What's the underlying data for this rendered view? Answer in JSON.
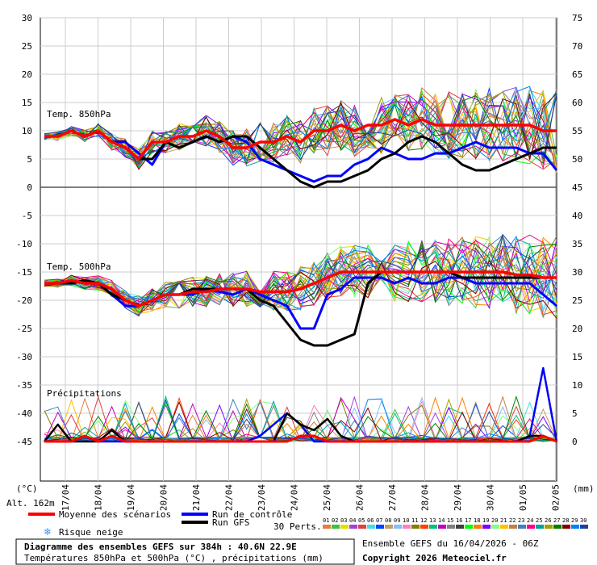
{
  "chart_data": {
    "type": "line",
    "x_dates": [
      "17/04",
      "18/04",
      "19/04",
      "20/04",
      "21/04",
      "22/04",
      "23/04",
      "24/04",
      "25/04",
      "26/04",
      "27/04",
      "28/04",
      "29/04",
      "30/04",
      "01/05",
      "02/05"
    ],
    "y_axis_left": {
      "unit": "(°C)",
      "ticks": [
        30,
        25,
        20,
        15,
        10,
        5,
        0,
        -5,
        -10,
        -15,
        -20,
        -25,
        -30,
        -35,
        -40,
        -45
      ]
    },
    "y_axis_right": {
      "unit": "(mm)",
      "ticks": [
        75,
        70,
        65,
        60,
        55,
        50,
        45,
        40,
        35,
        30,
        25,
        20,
        15,
        10,
        5,
        0
      ]
    },
    "panels": {
      "t850": {
        "label": "Temp. 850hPa"
      },
      "t500": {
        "label": "Temp. 500hPa"
      },
      "precip": {
        "label": "Précipitations"
      }
    },
    "alt_label": "Alt. 162m",
    "series": [
      {
        "name": "Moyenne des scénarios",
        "color": "#ff0000",
        "t850": [
          9,
          9,
          10,
          9,
          10,
          8,
          7,
          5,
          8,
          8,
          9,
          9,
          10,
          9,
          7,
          7,
          8,
          8,
          9,
          8,
          10,
          10,
          11,
          10,
          11,
          11,
          12,
          11,
          12,
          11,
          11,
          11,
          11,
          11,
          11,
          11,
          11,
          10,
          10
        ],
        "t500": [
          -17,
          -17,
          -16.5,
          -17,
          -17,
          -18,
          -20,
          -21,
          -20,
          -19,
          -19,
          -18.5,
          -18.5,
          -18,
          -18,
          -18,
          -18.5,
          -18.5,
          -18.5,
          -18,
          -17,
          -16,
          -15,
          -15,
          -15,
          -15,
          -15,
          -15,
          -15,
          -15,
          -15,
          -15,
          -15,
          -15,
          -15,
          -15.5,
          -15.5,
          -16,
          -16
        ],
        "precip": [
          0,
          0,
          0,
          1,
          0,
          1,
          0,
          0,
          0,
          0,
          0,
          0,
          0,
          0,
          0,
          0,
          0,
          0,
          0,
          1,
          1,
          0,
          0,
          0,
          0,
          0,
          0,
          0,
          0,
          0,
          0,
          0,
          0,
          0,
          0,
          0,
          0,
          1,
          0
        ]
      },
      {
        "name": "Run de contrôle",
        "color": "#0000ff",
        "t850": [
          9,
          9,
          10,
          9,
          10,
          8,
          8,
          6,
          4,
          8,
          7,
          8,
          9,
          8,
          9,
          8,
          5,
          4,
          3,
          2,
          1,
          2,
          2,
          4,
          5,
          7,
          6,
          5,
          5,
          6,
          6,
          7,
          8,
          7,
          7,
          7,
          6,
          6,
          3
        ],
        "t500": [
          -17,
          -17,
          -17,
          -16.5,
          -17,
          -19,
          -21,
          -21,
          -20,
          -19,
          -19,
          -19,
          -18,
          -18.5,
          -19,
          -18,
          -19,
          -20,
          -21,
          -25,
          -25,
          -19,
          -18,
          -16,
          -16,
          -16,
          -17,
          -16,
          -17,
          -17,
          -16,
          -16,
          -17,
          -17,
          -17,
          -17,
          -17,
          -19,
          -21
        ],
        "precip": [
          0,
          0,
          0,
          1,
          0,
          0,
          0,
          0,
          0,
          0,
          0,
          0,
          0,
          0,
          0,
          0,
          1,
          3,
          5,
          3,
          0,
          0,
          0,
          0,
          0,
          0,
          0,
          0,
          0,
          0,
          0,
          0,
          0,
          0,
          0,
          0,
          1,
          13,
          0
        ]
      },
      {
        "name": "Run GFS",
        "color": "#000000",
        "t850": [
          9,
          9,
          10,
          9,
          10,
          8,
          7,
          5,
          5,
          8,
          7,
          8,
          9,
          8,
          9,
          9,
          7,
          5,
          3,
          1,
          0,
          1,
          1,
          2,
          3,
          5,
          6,
          8,
          9,
          8,
          6,
          4,
          3,
          3,
          4,
          5,
          6,
          7,
          7
        ],
        "t500": [
          -17,
          -17,
          -17,
          -16.5,
          -17,
          -19,
          -20,
          -21,
          -20,
          -19,
          -19,
          -18,
          -18,
          -18,
          -18,
          -18,
          -20,
          -21,
          -24,
          -27,
          -28,
          -28,
          -27,
          -26,
          -17,
          -15,
          -15,
          -15,
          -15,
          -15,
          -15,
          -16,
          -16,
          -16,
          -16,
          -16,
          -16,
          -16,
          -16
        ],
        "precip": [
          0,
          3,
          0,
          0,
          0,
          2,
          0,
          0,
          0,
          0,
          0,
          0,
          0,
          0,
          0,
          0,
          0,
          0,
          5,
          3,
          2,
          4,
          1,
          0,
          0,
          0,
          0,
          0,
          0,
          0,
          0,
          0,
          0,
          0,
          0,
          0,
          1,
          1,
          0
        ]
      }
    ],
    "legend": {
      "mean": "Moyenne des scénarios",
      "control": "Run de contrôle",
      "gfs": "Run GFS",
      "snow": "Risque neige",
      "perts": "30 Perts."
    },
    "pert_labels": [
      "01",
      "02",
      "03",
      "04",
      "05",
      "06",
      "07",
      "08",
      "09",
      "10",
      "11",
      "12",
      "13",
      "14",
      "15",
      "16",
      "17",
      "18",
      "19",
      "20",
      "21",
      "22",
      "23",
      "24",
      "25",
      "26",
      "27",
      "28",
      "29",
      "30"
    ],
    "pert_colors": [
      "#e08040",
      "#40c040",
      "#e0e000",
      "#a040e0",
      "#e04040",
      "#40e0e0",
      "#0040ff",
      "#c0a060",
      "#80c0ff",
      "#ff80c0",
      "#808000",
      "#ff4000",
      "#00c080",
      "#c000c0",
      "#808080",
      "#404040",
      "#00ff00",
      "#ff8000",
      "#8000ff",
      "#80ff80",
      "#ffc000",
      "#c08040",
      "#4080c0",
      "#ff0080",
      "#00a0a0",
      "#a0a000",
      "#008000",
      "#800000",
      "#0080ff",
      "#2040a0"
    ],
    "title": "Diagramme des ensembles GEFS sur 384h : 40.6N 22.9E",
    "subtitle": "Températures 850hPa et 500hPa (°C) , précipitations (mm)",
    "run_info": "Ensemble GEFS du 16/04/2026 - 06Z",
    "copyright": "Copyright 2026 Meteociel.fr"
  }
}
